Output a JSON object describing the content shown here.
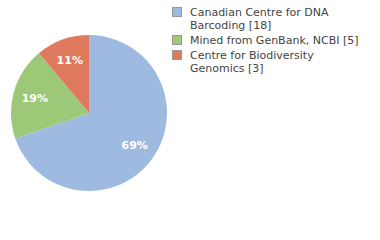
{
  "chart_data": {
    "type": "pie",
    "categories": [
      "Canadian Centre for DNA Barcoding [18]",
      "Mined from GenBank, NCBI [5]",
      "Centre for Biodiversity Genomics [3]"
    ],
    "values": [
      69,
      19,
      11
    ],
    "value_labels": [
      "69%",
      "19%",
      "11%"
    ],
    "colors": [
      "#9fbae0",
      "#9cc878",
      "#e07a5e"
    ],
    "data_labels": true,
    "legend": "right"
  }
}
